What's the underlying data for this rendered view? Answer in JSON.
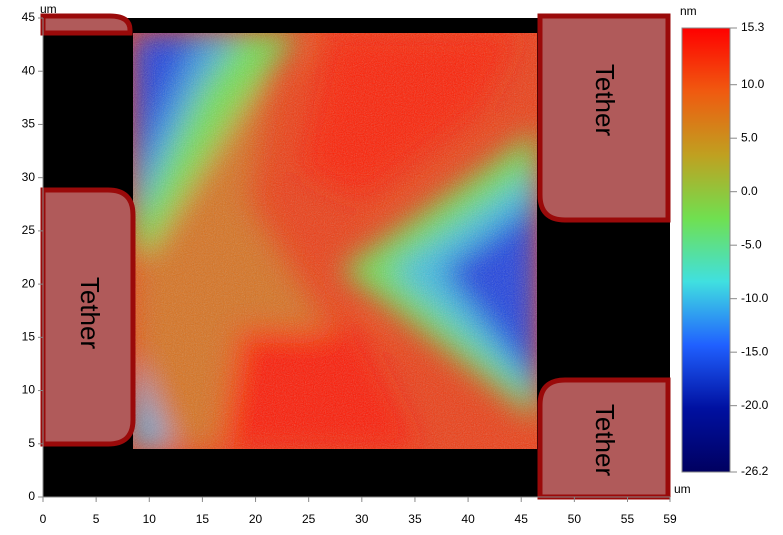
{
  "chart_data": {
    "type": "image",
    "x_unit": "um",
    "y_unit": "um",
    "colorbar_unit": "nm",
    "xlim": [
      0,
      59
    ],
    "xticks": [
      0,
      5,
      10,
      15,
      20,
      25,
      30,
      35,
      40,
      45,
      50,
      55,
      59
    ],
    "ylim": [
      0,
      45
    ],
    "yticks": [
      0,
      5,
      10,
      15,
      20,
      25,
      30,
      35,
      40,
      45
    ],
    "clim": [
      -26.2,
      15.3
    ],
    "cticks": [
      15.3,
      {
        "value": 10,
        "label": "10.0"
      },
      {
        "value": 5,
        "label": "5.0"
      },
      {
        "value": 0,
        "label": "0.0"
      },
      {
        "value": -5,
        "label": "-5.0"
      },
      {
        "value": -10,
        "label": "-10.0"
      },
      {
        "value": -15,
        "label": "-15.0"
      },
      {
        "value": -20,
        "label": "-20.0"
      },
      -26.2
    ],
    "colormap": [
      "#ff0000",
      "#f05a10",
      "#c0a020",
      "#70e050",
      "#40e0e0",
      "#2060ff",
      "#0010a0",
      "#000060"
    ],
    "annotations": [
      "Tether",
      "Tether",
      "Tether"
    ]
  }
}
